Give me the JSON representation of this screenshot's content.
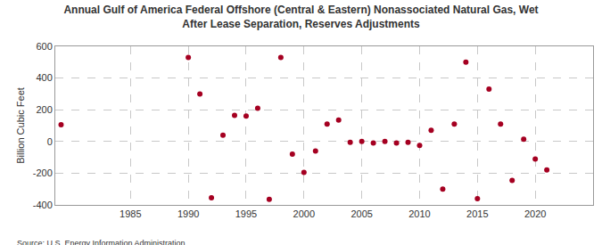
{
  "chart_data": {
    "type": "scatter",
    "title": "Annual Gulf of America Federal Offshore (Central & Eastern) Nonassociated Natural Gas, Wet\nAfter Lease Separation, Reserves Adjustments",
    "y_label": "Billion Cubic Feet",
    "source": "Source: U.S. Energy Information Administration",
    "x": [
      1979,
      1990,
      1991,
      1992,
      1993,
      1994,
      1995,
      1996,
      1997,
      1998,
      1999,
      2000,
      2001,
      2002,
      2003,
      2004,
      2005,
      2006,
      2007,
      2008,
      2009,
      2010,
      2011,
      2012,
      2013,
      2014,
      2015,
      2016,
      2017,
      2018,
      2019,
      2020,
      2021
    ],
    "values": [
      105,
      530,
      300,
      -355,
      40,
      165,
      160,
      210,
      -365,
      530,
      -80,
      -195,
      -60,
      110,
      135,
      -5,
      0,
      -10,
      0,
      -10,
      -5,
      -25,
      70,
      -300,
      110,
      500,
      -360,
      330,
      110,
      -245,
      15,
      -110,
      -180
    ],
    "color": "#a50021",
    "marker": "circle",
    "xlim": [
      1978.5,
      2025
    ],
    "xticks": [
      1985,
      1990,
      1995,
      2000,
      2005,
      2010,
      2015,
      2020
    ],
    "ylim": [
      -400,
      600
    ],
    "yticks": [
      -400,
      -200,
      0,
      200,
      400,
      600
    ],
    "grid": true
  }
}
